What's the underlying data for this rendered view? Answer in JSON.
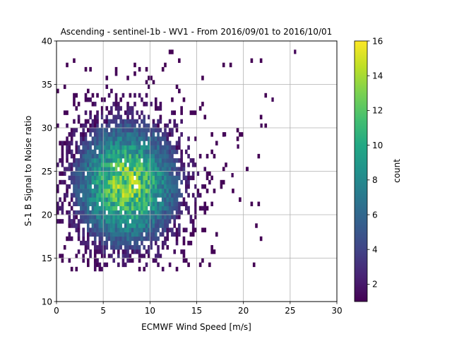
{
  "chart_data": {
    "type": "heatmap",
    "title": "Ascending - sentinel-1b - WV1 - From 2016/09/01 to 2016/10/01",
    "xlabel": "ECMWF Wind Speed [m/s]",
    "ylabel": "S-1 B Signal to Noise ratio",
    "xlim": [
      0,
      30
    ],
    "ylim": [
      10,
      40
    ],
    "x_ticks": [
      0,
      5,
      10,
      15,
      20,
      25,
      30
    ],
    "y_ticks": [
      10,
      15,
      20,
      25,
      30,
      35,
      40
    ],
    "x_tick_labels": [
      "0",
      "5",
      "10",
      "15",
      "20",
      "25",
      "30"
    ],
    "y_tick_labels": [
      "10",
      "15",
      "20",
      "25",
      "30",
      "35",
      "40"
    ],
    "grid": true,
    "bin_width": [
      0.25,
      0.5
    ],
    "colormap": "viridis",
    "colorbar": {
      "label": "count",
      "range": [
        1,
        16
      ],
      "ticks": [
        2,
        4,
        6,
        8,
        10,
        12,
        14,
        16
      ],
      "tick_labels": [
        "2",
        "4",
        "6",
        "8",
        "10",
        "12",
        "14",
        "16"
      ]
    },
    "density_peak": {
      "x": 7.5,
      "y": 23.5,
      "max_count": 16
    },
    "distribution_extent": {
      "x": [
        0,
        25.5
      ],
      "y": [
        13.5,
        39
      ]
    }
  }
}
